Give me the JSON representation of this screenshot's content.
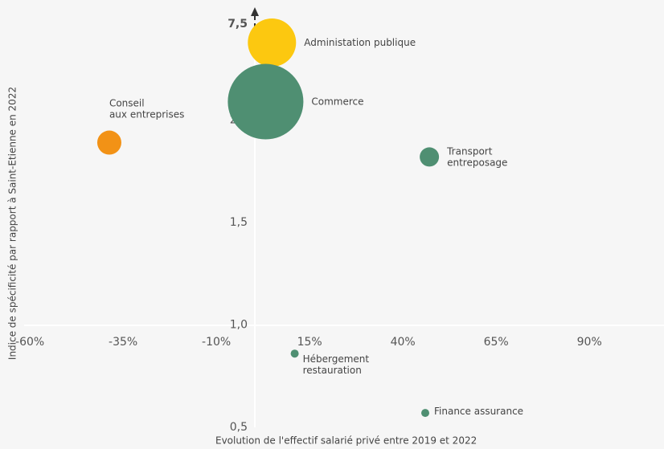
{
  "chart_data": {
    "type": "bubble",
    "x_label": "Evolution de l'effectif salarié privé entre 2019 et 2022",
    "y_label": "Indice de spécificité par rapport à Saint-Etienne en 2022",
    "xlim": [
      -68,
      110
    ],
    "ylim": [
      0.5,
      7.5
    ],
    "xticks": [
      {
        "value": -60,
        "label": "-60%"
      },
      {
        "value": -35,
        "label": "-35%"
      },
      {
        "value": -10,
        "label": "-10%"
      },
      {
        "value": 15,
        "label": "15%"
      },
      {
        "value": 40,
        "label": "40%"
      },
      {
        "value": 65,
        "label": "65%"
      },
      {
        "value": 90,
        "label": "90%"
      }
    ],
    "yticks": [
      {
        "value": 0.5,
        "label": "0,5"
      },
      {
        "value": 1.0,
        "label": "1,0"
      },
      {
        "value": 1.5,
        "label": "1,5"
      },
      {
        "value": 2.0,
        "label": "2,0"
      },
      {
        "value": 7.5,
        "label": "7,5"
      }
    ],
    "points": [
      {
        "name": "Conseil\naux entreprises",
        "x": -38.7,
        "y": 1.89,
        "size": 225,
        "color": "#f29216"
      },
      {
        "name": "Administation publique",
        "x": 4.9,
        "y": 7.5,
        "size": 900,
        "color": "#fcc810"
      },
      {
        "name": "Commerce",
        "x": 3.2,
        "y": 2.09,
        "size": 2209,
        "color": "#4f8f72"
      },
      {
        "name": "Transport\nentreposage",
        "x": 47.1,
        "y": 1.82,
        "size": 144,
        "color": "#4f8f72"
      },
      {
        "name": "Hébergement\nrestauration",
        "x": 11,
        "y": 0.86,
        "size": 25,
        "color": "#4f8f72"
      },
      {
        "name": "Finance assurance",
        "x": 46,
        "y": 0.57,
        "size": 25,
        "color": "#4f8f72"
      }
    ]
  }
}
